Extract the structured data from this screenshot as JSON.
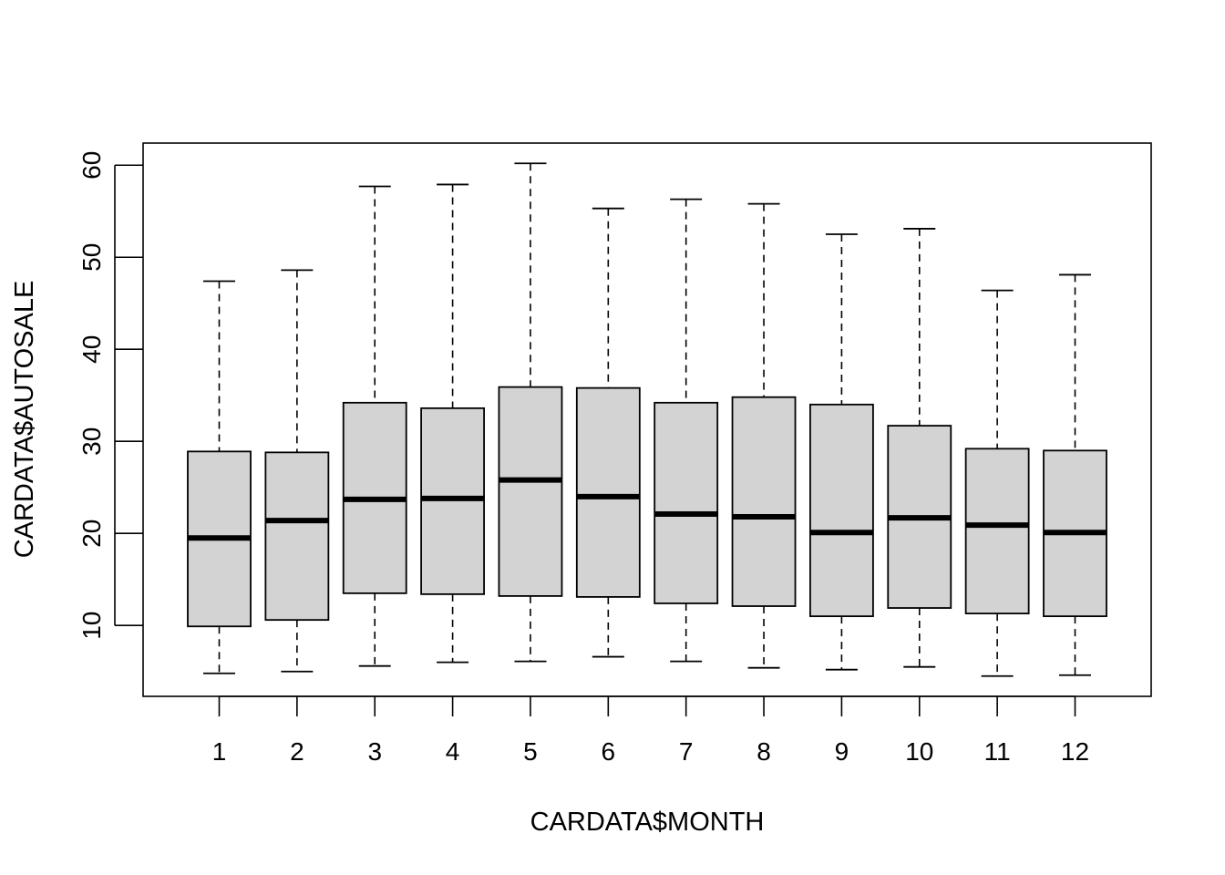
{
  "chart_data": {
    "type": "boxplot",
    "title": "",
    "xlabel": "CARDATA$MONTH",
    "ylabel": "CARDATA$AUTOSALE",
    "categories": [
      "1",
      "2",
      "3",
      "4",
      "5",
      "6",
      "7",
      "8",
      "9",
      "10",
      "11",
      "12"
    ],
    "boxes": [
      {
        "min": 4.8,
        "q1": 9.9,
        "median": 19.5,
        "q3": 28.9,
        "max": 47.4
      },
      {
        "min": 5.0,
        "q1": 10.6,
        "median": 21.4,
        "q3": 28.8,
        "max": 48.6
      },
      {
        "min": 5.6,
        "q1": 13.5,
        "median": 23.7,
        "q3": 34.2,
        "max": 57.7
      },
      {
        "min": 6.0,
        "q1": 13.4,
        "median": 23.8,
        "q3": 33.6,
        "max": 57.9
      },
      {
        "min": 6.1,
        "q1": 13.2,
        "median": 25.8,
        "q3": 35.9,
        "max": 60.2
      },
      {
        "min": 6.6,
        "q1": 13.1,
        "median": 24.0,
        "q3": 35.8,
        "max": 55.3
      },
      {
        "min": 6.1,
        "q1": 12.4,
        "median": 22.1,
        "q3": 34.2,
        "max": 56.3
      },
      {
        "min": 5.4,
        "q1": 12.1,
        "median": 21.8,
        "q3": 34.8,
        "max": 55.8
      },
      {
        "min": 5.2,
        "q1": 11.0,
        "median": 20.1,
        "q3": 34.0,
        "max": 52.5
      },
      {
        "min": 5.5,
        "q1": 11.9,
        "median": 21.7,
        "q3": 31.7,
        "max": 53.1
      },
      {
        "min": 4.5,
        "q1": 11.3,
        "median": 20.9,
        "q3": 29.2,
        "max": 46.4
      },
      {
        "min": 4.6,
        "q1": 11.0,
        "median": 20.1,
        "q3": 29.0,
        "max": 48.1
      }
    ],
    "ylim": [
      2.3,
      62.4
    ],
    "yticks": [
      10,
      20,
      30,
      40,
      50,
      60
    ],
    "box_fill": "#d3d3d3",
    "line_color": "#000000",
    "grid": false,
    "legend": "none"
  }
}
